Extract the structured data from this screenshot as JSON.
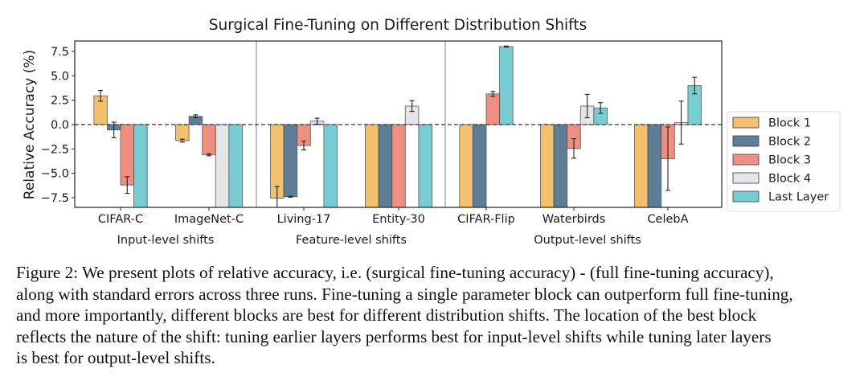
{
  "chart_data": {
    "type": "bar",
    "title": "Surgical Fine-Tuning on Different Distribution Shifts",
    "xlabel": "",
    "ylabel": "Relative Accuracy (%)",
    "ylim": [
      -8.5,
      8.3
    ],
    "yticks": [
      7.5,
      5.0,
      2.5,
      0.0,
      -2.5,
      -5.0,
      -7.5
    ],
    "ytick_labels": [
      "7.5",
      "5.0",
      "2.5",
      "0.0",
      "−2.5",
      "−5.0",
      "−7.5"
    ],
    "reference_line": {
      "y": 0.0,
      "style": "dashed"
    },
    "grid": false,
    "legend_position": "right",
    "categories": [
      "CIFAR-C",
      "ImageNet-C",
      "Living-17",
      "Entity-30",
      "CIFAR-Flip",
      "Waterbirds",
      "CelebA"
    ],
    "groups": [
      {
        "label": "Input-level shifts",
        "categories": [
          "CIFAR-C",
          "ImageNet-C"
        ]
      },
      {
        "label": "Feature-level shifts",
        "categories": [
          "Living-17",
          "Entity-30"
        ]
      },
      {
        "label": "Output-level shifts",
        "categories": [
          "CIFAR-Flip",
          "Waterbirds",
          "CelebA"
        ]
      }
    ],
    "series": [
      {
        "name": "Block 1",
        "color": "#f2c06f",
        "values": [
          2.95,
          -1.65,
          -7.55,
          "below_axis",
          "below_axis",
          "below_axis",
          "below_axis"
        ],
        "errors": [
          0.55,
          0.15,
          1.2,
          null,
          null,
          null,
          null
        ]
      },
      {
        "name": "Block 2",
        "color": "#5e7d96",
        "values": [
          -0.55,
          0.85,
          -7.4,
          "below_axis",
          "below_axis",
          "below_axis",
          "below_axis"
        ],
        "errors": [
          0.8,
          0.15,
          0.05,
          null,
          null,
          null,
          null
        ]
      },
      {
        "name": "Block 3",
        "color": "#ee8f80",
        "values": [
          -6.2,
          -3.1,
          -2.15,
          "below_axis",
          3.15,
          -2.45,
          -3.5
        ],
        "errors": [
          0.85,
          0.1,
          0.45,
          null,
          0.25,
          1.0,
          3.25
        ]
      },
      {
        "name": "Block 4",
        "color": "#e4e5e9",
        "values": [
          null,
          "below_axis",
          0.35,
          1.9,
          null,
          1.9,
          0.2
        ],
        "errors": [
          null,
          null,
          0.3,
          0.55,
          null,
          1.2,
          2.2
        ]
      },
      {
        "name": "Last Layer",
        "color": "#78cdd4",
        "values": [
          "below_axis",
          "below_axis",
          "below_axis",
          "below_axis",
          8.0,
          1.7,
          4.0
        ],
        "errors": [
          null,
          null,
          null,
          null,
          0.05,
          0.55,
          0.85
        ]
      }
    ]
  },
  "caption": {
    "lines": [
      "Figure 2: We present plots of relative accuracy, i.e. (surgical fine-tuning accuracy) - (full fine-tuning accuracy),",
      "along with standard errors across three runs. Fine-tuning a single parameter block can outperform full fine-tuning,",
      "and more importantly, different blocks are best for different distribution shifts. The location of the best block",
      "reflects the nature of the shift: tuning earlier layers performs best for input-level shifts while tuning later layers",
      "is best for output-level shifts."
    ]
  }
}
